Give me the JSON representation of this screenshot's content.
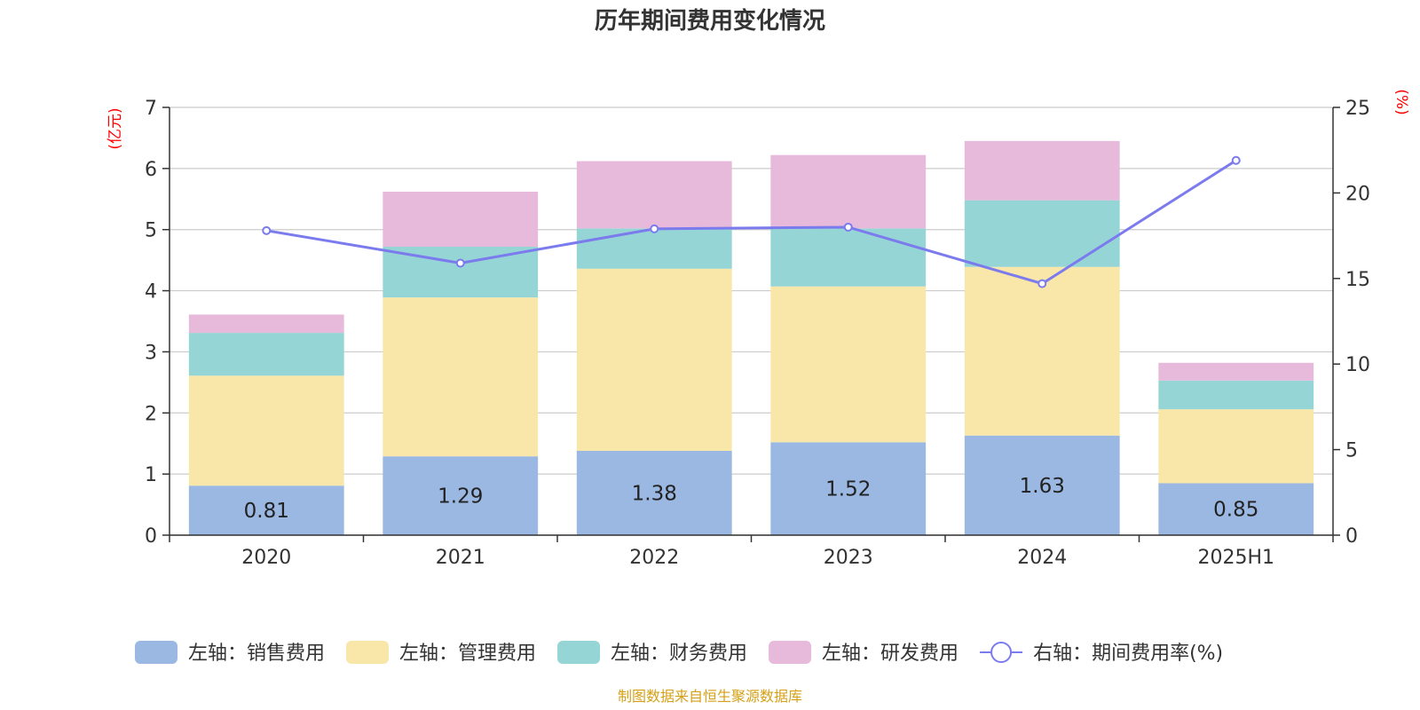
{
  "chart_data": {
    "type": "bar",
    "stacked": true,
    "title": "历年期间费用变化情况",
    "categories": [
      "2020",
      "2021",
      "2022",
      "2023",
      "2024",
      "2025H1"
    ],
    "left_axis": {
      "unit": "(亿元)",
      "ylim": [
        0,
        7
      ],
      "ticks": [
        "0",
        "1",
        "2",
        "3",
        "4",
        "5",
        "6",
        "7"
      ]
    },
    "right_axis": {
      "unit": "(%)",
      "ylim": [
        0,
        25
      ],
      "ticks": [
        "0",
        "5",
        "10",
        "15",
        "20",
        "25"
      ]
    },
    "grid": true,
    "legend_position": "bottom",
    "series": [
      {
        "name": "左轴：销售费用",
        "type": "bar",
        "axis": "left",
        "color": "#9bb8e2",
        "values": [
          0.81,
          1.29,
          1.38,
          1.52,
          1.63,
          0.85
        ],
        "labels": [
          "0.81",
          "1.29",
          "1.38",
          "1.52",
          "1.63",
          "0.85"
        ]
      },
      {
        "name": "左轴：管理费用",
        "type": "bar",
        "axis": "left",
        "color": "#f8e7a8",
        "values": [
          1.8,
          2.6,
          2.98,
          2.55,
          2.76,
          1.21
        ]
      },
      {
        "name": "左轴：财务费用",
        "type": "bar",
        "axis": "left",
        "color": "#96d5d5",
        "values": [
          0.7,
          0.83,
          0.66,
          0.95,
          1.09,
          0.47
        ]
      },
      {
        "name": "左轴：研发费用",
        "type": "bar",
        "axis": "left",
        "color": "#e7b9da",
        "values": [
          0.3,
          0.9,
          1.1,
          1.2,
          0.97,
          0.29
        ]
      },
      {
        "name": "右轴：期间费用率(%)",
        "type": "line",
        "axis": "right",
        "color": "#7b7bee",
        "values": [
          17.8,
          15.9,
          17.9,
          18.0,
          14.7,
          21.9
        ]
      }
    ]
  },
  "footer": {
    "source": "制图数据来自恒生聚源数据库"
  }
}
